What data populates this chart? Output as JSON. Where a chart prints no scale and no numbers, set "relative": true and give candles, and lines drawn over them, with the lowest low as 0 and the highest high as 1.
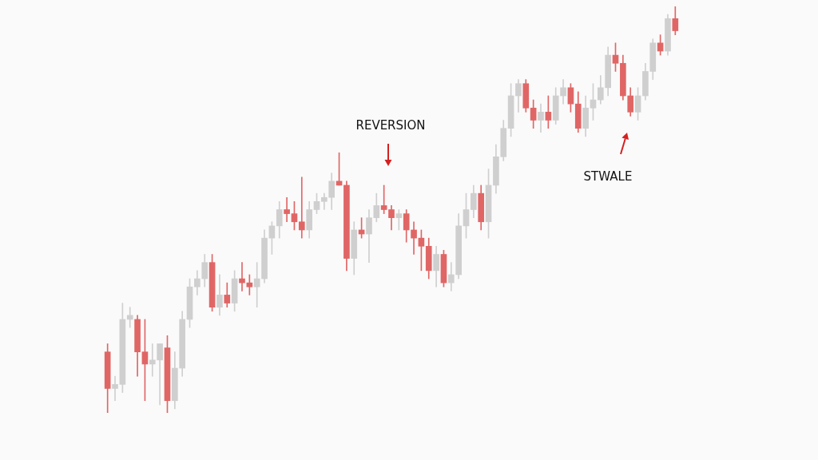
{
  "chart_data": {
    "type": "candlestick",
    "relative": true,
    "annotations": [
      "REVERSION",
      "STWALE"
    ],
    "categories": [
      null,
      null,
      null,
      null,
      null,
      null,
      null,
      null,
      null,
      null,
      null,
      null,
      null,
      null,
      null,
      null,
      null,
      null,
      null,
      null,
      null,
      null,
      null,
      null,
      null,
      null,
      null,
      null,
      null,
      null,
      null,
      null,
      null,
      null,
      null,
      null,
      null,
      null,
      null,
      null,
      null,
      null,
      null,
      null,
      null,
      null,
      null,
      null,
      null,
      null,
      null,
      null,
      null,
      null,
      null,
      null,
      null,
      null,
      null,
      null,
      null,
      null,
      null,
      null,
      null,
      null,
      null,
      null,
      null,
      null,
      null,
      null,
      null,
      null,
      null,
      null,
      null
    ],
    "ohlc": [
      [
        0.15,
        0.17,
        0.0,
        0.06
      ],
      [
        0.06,
        0.09,
        0.03,
        0.07
      ],
      [
        0.07,
        0.27,
        0.05,
        0.23
      ],
      [
        0.23,
        0.26,
        0.21,
        0.24
      ],
      [
        0.23,
        0.24,
        0.09,
        0.15
      ],
      [
        0.15,
        0.23,
        0.03,
        0.12
      ],
      [
        0.12,
        0.17,
        0.09,
        0.13
      ],
      [
        0.13,
        0.17,
        0.02,
        0.17
      ],
      [
        0.16,
        0.19,
        0.0,
        0.03
      ],
      [
        0.03,
        0.15,
        0.01,
        0.11
      ],
      [
        0.11,
        0.25,
        0.09,
        0.23
      ],
      [
        0.23,
        0.33,
        0.21,
        0.31
      ],
      [
        0.31,
        0.35,
        0.29,
        0.33
      ],
      [
        0.33,
        0.39,
        0.31,
        0.37
      ],
      [
        0.37,
        0.39,
        0.25,
        0.26
      ],
      [
        0.26,
        0.34,
        0.24,
        0.29
      ],
      [
        0.29,
        0.32,
        0.26,
        0.27
      ],
      [
        0.27,
        0.35,
        0.25,
        0.33
      ],
      [
        0.33,
        0.37,
        0.3,
        0.32
      ],
      [
        0.32,
        0.34,
        0.29,
        0.31
      ],
      [
        0.31,
        0.37,
        0.26,
        0.33
      ],
      [
        0.33,
        0.45,
        0.32,
        0.43
      ],
      [
        0.43,
        0.47,
        0.39,
        0.46
      ],
      [
        0.46,
        0.52,
        0.43,
        0.5
      ],
      [
        0.5,
        0.53,
        0.47,
        0.49
      ],
      [
        0.49,
        0.52,
        0.45,
        0.47
      ],
      [
        0.47,
        0.58,
        0.43,
        0.45
      ],
      [
        0.45,
        0.52,
        0.43,
        0.5
      ],
      [
        0.5,
        0.54,
        0.49,
        0.52
      ],
      [
        0.52,
        0.54,
        0.5,
        0.53
      ],
      [
        0.53,
        0.59,
        0.5,
        0.57
      ],
      [
        0.57,
        0.64,
        0.56,
        0.56
      ],
      [
        0.56,
        0.57,
        0.35,
        0.38
      ],
      [
        0.38,
        0.47,
        0.34,
        0.45
      ],
      [
        0.45,
        0.48,
        0.43,
        0.44
      ],
      [
        0.44,
        0.5,
        0.37,
        0.48
      ],
      [
        0.48,
        0.54,
        0.47,
        0.51
      ],
      [
        0.51,
        0.56,
        0.49,
        0.5
      ],
      [
        0.5,
        0.51,
        0.45,
        0.48
      ],
      [
        0.48,
        0.5,
        0.45,
        0.49
      ],
      [
        0.49,
        0.5,
        0.42,
        0.45
      ],
      [
        0.45,
        0.47,
        0.39,
        0.43
      ],
      [
        0.43,
        0.45,
        0.35,
        0.41
      ],
      [
        0.41,
        0.43,
        0.33,
        0.35
      ],
      [
        0.35,
        0.41,
        0.31,
        0.39
      ],
      [
        0.39,
        0.4,
        0.31,
        0.32
      ],
      [
        0.32,
        0.37,
        0.3,
        0.34
      ],
      [
        0.34,
        0.49,
        0.33,
        0.46
      ],
      [
        0.46,
        0.54,
        0.43,
        0.5
      ],
      [
        0.5,
        0.56,
        0.48,
        0.54
      ],
      [
        0.54,
        0.56,
        0.45,
        0.47
      ],
      [
        0.47,
        0.6,
        0.43,
        0.56
      ],
      [
        0.56,
        0.66,
        0.54,
        0.63
      ],
      [
        0.63,
        0.72,
        0.62,
        0.7
      ],
      [
        0.7,
        0.81,
        0.68,
        0.78
      ],
      [
        0.78,
        0.82,
        0.74,
        0.81
      ],
      [
        0.81,
        0.82,
        0.74,
        0.75
      ],
      [
        0.75,
        0.77,
        0.7,
        0.72
      ],
      [
        0.72,
        0.76,
        0.69,
        0.74
      ],
      [
        0.74,
        0.78,
        0.7,
        0.72
      ],
      [
        0.72,
        0.8,
        0.71,
        0.78
      ],
      [
        0.78,
        0.82,
        0.76,
        0.8
      ],
      [
        0.8,
        0.81,
        0.74,
        0.76
      ],
      [
        0.76,
        0.79,
        0.69,
        0.7
      ],
      [
        0.7,
        0.78,
        0.68,
        0.75
      ],
      [
        0.75,
        0.81,
        0.72,
        0.77
      ],
      [
        0.77,
        0.83,
        0.76,
        0.8
      ],
      [
        0.8,
        0.9,
        0.78,
        0.88
      ],
      [
        0.88,
        0.91,
        0.84,
        0.86
      ],
      [
        0.86,
        0.88,
        0.77,
        0.78
      ],
      [
        0.78,
        0.8,
        0.73,
        0.74
      ],
      [
        0.74,
        0.8,
        0.72,
        0.78
      ],
      [
        0.78,
        0.86,
        0.77,
        0.84
      ],
      [
        0.84,
        0.92,
        0.82,
        0.91
      ],
      [
        0.91,
        0.93,
        0.88,
        0.89
      ],
      [
        0.89,
        0.98,
        0.88,
        0.97
      ],
      [
        0.97,
        1.0,
        0.93,
        0.94
      ]
    ],
    "colors": [
      "#e06666",
      "#cfcfcf",
      "#cfcfcf",
      "#cfcfcf",
      "#e06666",
      "#e06666",
      "#cfcfcf",
      "#cfcfcf",
      "#e06666",
      "#cfcfcf",
      "#cfcfcf",
      "#cfcfcf",
      "#cfcfcf",
      "#cfcfcf",
      "#e06666",
      "#cfcfcf",
      "#e06666",
      "#cfcfcf",
      "#e06666",
      "#e06666",
      "#cfcfcf",
      "#cfcfcf",
      "#cfcfcf",
      "#cfcfcf",
      "#e06666",
      "#e06666",
      "#e06666",
      "#cfcfcf",
      "#cfcfcf",
      "#cfcfcf",
      "#cfcfcf",
      "#e06666",
      "#e06666",
      "#cfcfcf",
      "#e06666",
      "#cfcfcf",
      "#cfcfcf",
      "#e06666",
      "#e06666",
      "#cfcfcf",
      "#e06666",
      "#e06666",
      "#e06666",
      "#e06666",
      "#cfcfcf",
      "#e06666",
      "#cfcfcf",
      "#cfcfcf",
      "#cfcfcf",
      "#cfcfcf",
      "#e06666",
      "#cfcfcf",
      "#cfcfcf",
      "#cfcfcf",
      "#cfcfcf",
      "#cfcfcf",
      "#e06666",
      "#e06666",
      "#cfcfcf",
      "#e06666",
      "#cfcfcf",
      "#cfcfcf",
      "#e06666",
      "#e06666",
      "#cfcfcf",
      "#cfcfcf",
      "#cfcfcf",
      "#cfcfcf",
      "#e06666",
      "#e06666",
      "#e06666",
      "#cfcfcf",
      "#cfcfcf",
      "#cfcfcf",
      "#e06666",
      "#cfcfcf",
      "#e06666"
    ]
  }
}
